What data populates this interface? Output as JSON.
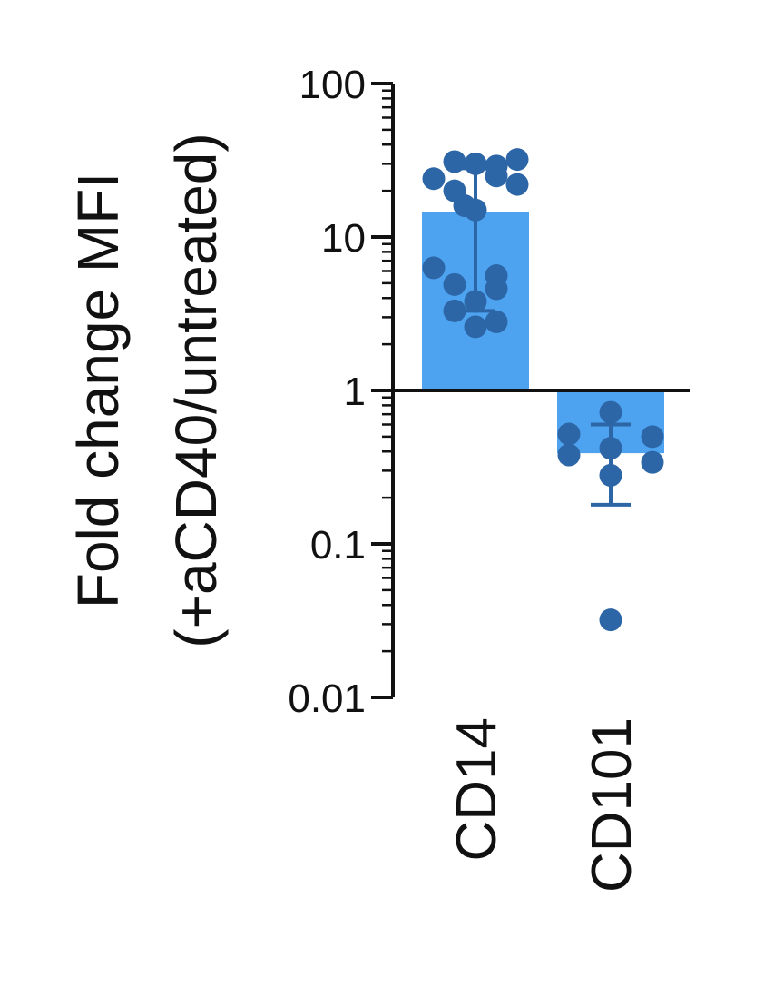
{
  "chart_data": {
    "type": "bar",
    "title": "",
    "xlabel": "",
    "ylabel_lines": [
      "Fold change MFI",
      "(+aCD40/untreated)"
    ],
    "yscale": "log",
    "ylim": [
      0.01,
      100
    ],
    "yticks": [
      0.01,
      0.1,
      1,
      10,
      100
    ],
    "ytick_labels": [
      "0.01",
      "0.1",
      "1",
      "10",
      "100"
    ],
    "baseline": 1,
    "grid": false,
    "categories": [
      "CD14",
      "CD101"
    ],
    "bars": [
      {
        "category": "CD14",
        "mean": 14.5,
        "sd_low": 3.3,
        "sd_high": 28,
        "points": [
          31,
          30,
          29,
          32,
          24,
          25,
          16,
          22,
          15,
          20,
          6.3,
          5.6,
          4.9,
          4.6,
          3.8,
          3.3,
          2.6,
          2.8
        ]
      },
      {
        "category": "CD101",
        "mean": 0.39,
        "sd_low": 0.18,
        "sd_high": 0.6,
        "points": [
          0.72,
          0.52,
          0.42,
          0.5,
          0.38,
          0.34,
          0.28,
          0.032
        ]
      }
    ],
    "colors": {
      "bar": "#4ea3f1",
      "point": "#2d66a6",
      "errorbar": "#2d66a6",
      "axis": "#111111"
    }
  }
}
